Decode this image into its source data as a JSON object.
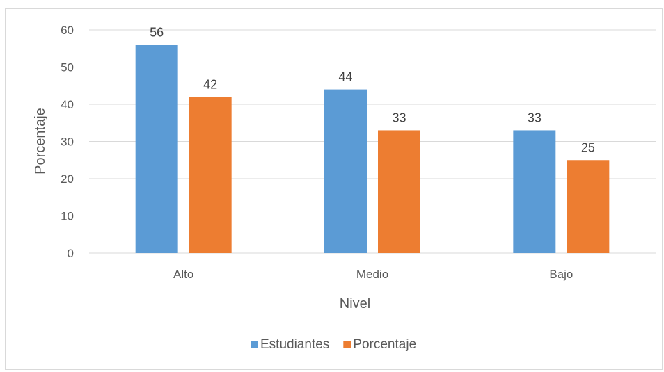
{
  "chart_data": {
    "type": "bar",
    "categories": [
      "Alto",
      "Medio",
      "Bajo"
    ],
    "series": [
      {
        "name": "Estudiantes",
        "values": [
          56,
          44,
          33
        ],
        "color": "#5b9bd5"
      },
      {
        "name": "Porcentaje",
        "values": [
          42,
          33,
          25
        ],
        "color": "#ed7d31"
      }
    ],
    "xlabel": "Nivel",
    "ylabel": "Porcentaje",
    "ylim": [
      0,
      60
    ],
    "yticks": [
      0,
      10,
      20,
      30,
      40,
      50,
      60
    ],
    "grid": true,
    "legend_position": "bottom",
    "data_labels": true,
    "colors": {
      "gridline": "#d9d9d9",
      "text": "#595959"
    }
  }
}
